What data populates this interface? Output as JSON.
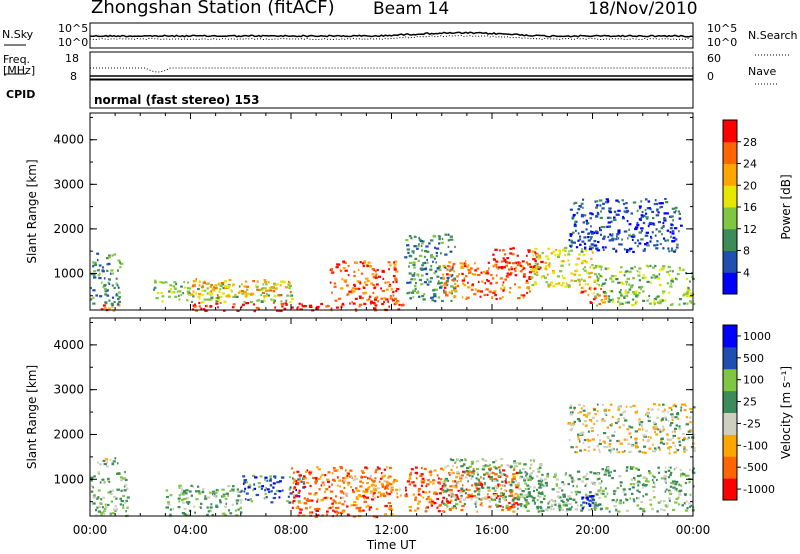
{
  "header": {
    "station": "Zhongshan Station (fitACF)",
    "beam": "Beam 14",
    "date": "18/Nov/2010"
  },
  "strip": {
    "nsky_label": "N.Sky",
    "nsearch_label": "N.Search",
    "power_ticks": [
      "10^5",
      "10^0"
    ],
    "freq_label": "Freq.",
    "freq_unit": "[MHz]",
    "freq_ticks": [
      "18",
      "8"
    ],
    "nave_label": "Nave",
    "nave_ticks": [
      "60",
      "0"
    ],
    "cpid_label": "CPID",
    "cpid_text": "normal (fast stereo) 153"
  },
  "colors": {
    "power_scale": [
      "#0000ff",
      "#1f4fb0",
      "#3c8c5a",
      "#7fc742",
      "#e6e600",
      "#ffa500",
      "#ff6600",
      "#ff0000"
    ],
    "velocity_scale": [
      "#ff0000",
      "#ff6600",
      "#ffa500",
      "#cfcfbf",
      "#3c8c5a",
      "#7fc742",
      "#1f4fb0",
      "#0000ff"
    ]
  },
  "chart_data": [
    {
      "type": "heatmap",
      "name": "power",
      "ylabel": "Slant Range [km]",
      "yticks": [
        "1000",
        "2000",
        "3000",
        "4000"
      ],
      "colorbar_label": "Power [dB]",
      "colorbar_ticks": [
        "4",
        "8",
        "12",
        "16",
        "20",
        "24",
        "28"
      ],
      "xlabel": "",
      "xticks": [
        "00:00",
        "04:00",
        "08:00",
        "12:00",
        "16:00",
        "20:00",
        "00:00"
      ],
      "xlim_hours": [
        0,
        24
      ],
      "ylim_km": [
        180,
        4600
      ],
      "scatter_regions": [
        {
          "t": [
            0.0,
            1.2
          ],
          "r": [
            180,
            320
          ],
          "level": 6
        },
        {
          "t": [
            0.0,
            1.2
          ],
          "r": [
            320,
            1500
          ],
          "level": 2
        },
        {
          "t": [
            2.5,
            4.0
          ],
          "r": [
            400,
            900
          ],
          "level": 3
        },
        {
          "t": [
            4.0,
            8.0
          ],
          "r": [
            180,
            380
          ],
          "level": 7
        },
        {
          "t": [
            4.0,
            8.0
          ],
          "r": [
            380,
            800
          ],
          "level": 3
        },
        {
          "t": [
            4.0,
            8.0
          ],
          "r": [
            500,
            900
          ],
          "level": 5
        },
        {
          "t": [
            8.0,
            12.5
          ],
          "r": [
            180,
            350
          ],
          "level": 7
        },
        {
          "t": [
            9.5,
            12.2
          ],
          "r": [
            350,
            1300
          ],
          "level": 6
        },
        {
          "t": [
            12.5,
            14.5
          ],
          "r": [
            400,
            1900
          ],
          "level": 2
        },
        {
          "t": [
            14.0,
            17.5
          ],
          "r": [
            450,
            1300
          ],
          "level": 6
        },
        {
          "t": [
            16.0,
            18.0
          ],
          "r": [
            1100,
            1600
          ],
          "level": 7
        },
        {
          "t": [
            17.5,
            20.0
          ],
          "r": [
            700,
            1600
          ],
          "level": 4
        },
        {
          "t": [
            19.5,
            20.5
          ],
          "r": [
            300,
            700
          ],
          "level": 6
        },
        {
          "t": [
            20.0,
            24.0
          ],
          "r": [
            300,
            1200
          ],
          "level": 3
        },
        {
          "t": [
            19.0,
            23.5
          ],
          "r": [
            1500,
            2700
          ],
          "level": 1
        }
      ]
    },
    {
      "type": "heatmap",
      "name": "velocity",
      "ylabel": "Slant Range [km]",
      "yticks": [
        "1000",
        "2000",
        "3000",
        "4000"
      ],
      "colorbar_label": "Velocity [m s⁻¹]",
      "colorbar_ticks": [
        "1000",
        "500",
        "100",
        "25",
        "-25",
        "-100",
        "-500",
        "-1000"
      ],
      "xlabel": "Time UT",
      "xticks": [
        "00:00",
        "04:00",
        "08:00",
        "12:00",
        "16:00",
        "20:00",
        "00:00"
      ],
      "xlim_hours": [
        0,
        24
      ],
      "ylim_km": [
        180,
        4600
      ],
      "scatter_regions": [
        {
          "t": [
            0.0,
            1.2
          ],
          "r": [
            1300,
            1500
          ],
          "level": 3
        },
        {
          "t": [
            0.0,
            1.5
          ],
          "r": [
            180,
            1200
          ],
          "level": 4
        },
        {
          "t": [
            3.0,
            6.0
          ],
          "r": [
            180,
            900
          ],
          "level": 4
        },
        {
          "t": [
            6.0,
            8.5
          ],
          "r": [
            500,
            1100
          ],
          "level": 6
        },
        {
          "t": [
            8.0,
            12.0
          ],
          "r": [
            180,
            1300
          ],
          "level": 1
        },
        {
          "t": [
            10.0,
            12.5
          ],
          "r": [
            600,
            1100
          ],
          "level": 2
        },
        {
          "t": [
            12.5,
            17.0
          ],
          "r": [
            300,
            1300
          ],
          "level": 1
        },
        {
          "t": [
            14.0,
            18.0
          ],
          "r": [
            400,
            1500
          ],
          "level": 4
        },
        {
          "t": [
            17.0,
            20.0
          ],
          "r": [
            300,
            1200
          ],
          "level": 4
        },
        {
          "t": [
            19.5,
            20.3
          ],
          "r": [
            300,
            800
          ],
          "level": 6
        },
        {
          "t": [
            20.0,
            24.0
          ],
          "r": [
            300,
            1300
          ],
          "level": 4
        },
        {
          "t": [
            19.0,
            24.0
          ],
          "r": [
            1600,
            2700
          ],
          "level": 3
        }
      ]
    }
  ]
}
